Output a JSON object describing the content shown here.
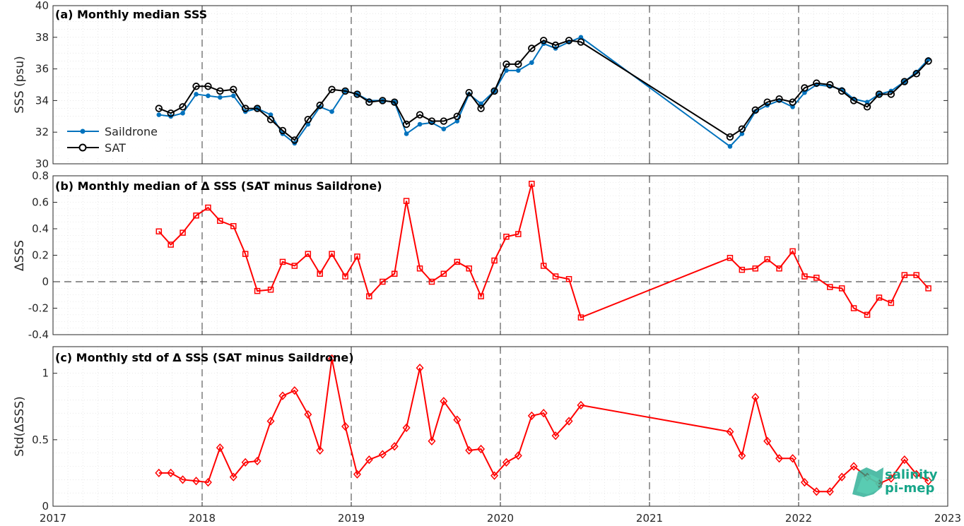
{
  "chart_data": [
    {
      "type": "line",
      "title": "(a) Monthly median SSS",
      "ylabel": "SSS (psu)",
      "ylim": [
        30,
        40
      ],
      "yticks": [
        30,
        32,
        34,
        36,
        38,
        40
      ],
      "xlim": [
        2017,
        2023
      ],
      "x": [
        2017.71,
        2017.79,
        2017.87,
        2017.96,
        2018.04,
        2018.12,
        2018.21,
        2018.29,
        2018.37,
        2018.46,
        2018.54,
        2018.62,
        2018.71,
        2018.79,
        2018.87,
        2018.96,
        2019.04,
        2019.12,
        2019.21,
        2019.29,
        2019.37,
        2019.46,
        2019.54,
        2019.62,
        2019.71,
        2019.79,
        2019.87,
        2019.96,
        2020.04,
        2020.12,
        2020.21,
        2020.29,
        2020.37,
        2020.46,
        2020.54,
        2021.54,
        2021.62,
        2021.71,
        2021.79,
        2021.87,
        2021.96,
        2022.04,
        2022.12,
        2022.21,
        2022.29,
        2022.37,
        2022.46,
        2022.54,
        2022.62,
        2022.71,
        2022.79,
        2022.87
      ],
      "series": [
        {
          "name": "Saildrone",
          "color": "#0072bd",
          "marker": "dot",
          "values": [
            33.1,
            33.0,
            33.2,
            34.4,
            34.3,
            34.2,
            34.3,
            33.3,
            33.5,
            33.1,
            31.9,
            31.3,
            32.5,
            33.6,
            33.3,
            34.6,
            34.4,
            34.0,
            34.0,
            33.9,
            31.9,
            32.5,
            32.6,
            32.2,
            32.7,
            34.4,
            33.8,
            34.6,
            35.9,
            35.9,
            36.4,
            37.6,
            37.3,
            37.7,
            38.0,
            31.1,
            31.9,
            33.3,
            33.7,
            34.0,
            33.6,
            34.5,
            35.0,
            34.9,
            34.7,
            34.1,
            33.9,
            34.4,
            34.6,
            35.2,
            35.8,
            36.6
          ]
        },
        {
          "name": "SAT",
          "color": "#000000",
          "marker": "circle",
          "values": [
            33.5,
            33.2,
            33.6,
            34.9,
            34.9,
            34.6,
            34.7,
            33.5,
            33.5,
            32.8,
            32.1,
            31.5,
            32.8,
            33.7,
            34.7,
            34.6,
            34.4,
            33.9,
            34.0,
            33.9,
            32.5,
            33.1,
            32.7,
            32.7,
            33.0,
            34.5,
            33.5,
            34.6,
            36.3,
            36.3,
            37.3,
            37.8,
            37.5,
            37.8,
            37.7,
            31.7,
            32.2,
            33.4,
            33.9,
            34.1,
            33.9,
            34.8,
            35.1,
            35.0,
            34.6,
            34.0,
            33.6,
            34.4,
            34.4,
            35.2,
            35.7,
            36.5
          ]
        }
      ],
      "legend": [
        "Saildrone",
        "SAT"
      ],
      "legend_location": "bottom-left",
      "grid": true
    },
    {
      "type": "line",
      "title": "(b) Monthly median of Δ SSS (SAT minus Saildrone)",
      "ylabel": "ΔSSS",
      "ylim": [
        -0.4,
        0.8
      ],
      "yticks": [
        -0.4,
        -0.2,
        0,
        0.2,
        0.4,
        0.6,
        0.8
      ],
      "xlim": [
        2017,
        2023
      ],
      "x": [
        2017.71,
        2017.79,
        2017.87,
        2017.96,
        2018.04,
        2018.12,
        2018.21,
        2018.29,
        2018.37,
        2018.46,
        2018.54,
        2018.62,
        2018.71,
        2018.79,
        2018.87,
        2018.96,
        2019.04,
        2019.12,
        2019.21,
        2019.29,
        2019.37,
        2019.46,
        2019.54,
        2019.62,
        2019.71,
        2019.79,
        2019.87,
        2019.96,
        2020.04,
        2020.12,
        2020.21,
        2020.29,
        2020.37,
        2020.46,
        2020.54,
        2021.54,
        2021.62,
        2021.71,
        2021.79,
        2021.87,
        2021.96,
        2022.04,
        2022.12,
        2022.21,
        2022.29,
        2022.37,
        2022.46,
        2022.54,
        2022.62,
        2022.71,
        2022.79,
        2022.87
      ],
      "series": [
        {
          "color": "#ff0000",
          "marker": "square",
          "values": [
            0.38,
            0.28,
            0.37,
            0.5,
            0.56,
            0.46,
            0.42,
            0.21,
            -0.07,
            -0.06,
            0.15,
            0.12,
            0.21,
            0.06,
            0.21,
            0.04,
            0.19,
            -0.11,
            0.0,
            0.06,
            0.61,
            0.1,
            0.0,
            0.06,
            0.15,
            0.1,
            -0.11,
            0.16,
            0.34,
            0.36,
            0.74,
            0.12,
            0.04,
            0.02,
            -0.27,
            0.18,
            0.09,
            0.1,
            0.17,
            0.1,
            0.23,
            0.04,
            0.03,
            -0.04,
            -0.05,
            -0.2,
            -0.25,
            -0.12,
            -0.16,
            0.05,
            0.05,
            -0.05
          ]
        }
      ],
      "zero_line": true,
      "grid": true
    },
    {
      "type": "line",
      "title": "(c) Monthly std of Δ SSS (SAT minus Saildrone)",
      "ylabel": "Std(ΔSSS)",
      "ylim": [
        0,
        1.2
      ],
      "yticks": [
        0,
        0.5,
        1
      ],
      "xlim": [
        2017,
        2023
      ],
      "xticks": [
        2017,
        2018,
        2019,
        2020,
        2021,
        2022,
        2023
      ],
      "x": [
        2017.71,
        2017.79,
        2017.87,
        2017.96,
        2018.04,
        2018.12,
        2018.21,
        2018.29,
        2018.37,
        2018.46,
        2018.54,
        2018.62,
        2018.71,
        2018.79,
        2018.87,
        2018.96,
        2019.04,
        2019.12,
        2019.21,
        2019.29,
        2019.37,
        2019.46,
        2019.54,
        2019.62,
        2019.71,
        2019.79,
        2019.87,
        2019.96,
        2020.04,
        2020.12,
        2020.21,
        2020.29,
        2020.37,
        2020.46,
        2020.54,
        2021.54,
        2021.62,
        2021.71,
        2021.79,
        2021.87,
        2021.96,
        2022.04,
        2022.12,
        2022.21,
        2022.29,
        2022.37,
        2022.46,
        2022.54,
        2022.62,
        2022.71,
        2022.79,
        2022.87
      ],
      "series": [
        {
          "color": "#ff0000",
          "marker": "diamond",
          "values": [
            0.25,
            0.25,
            0.2,
            0.19,
            0.18,
            0.44,
            0.22,
            0.33,
            0.34,
            0.64,
            0.83,
            0.87,
            0.69,
            0.42,
            1.11,
            0.6,
            0.24,
            0.35,
            0.39,
            0.45,
            0.59,
            1.04,
            0.49,
            0.79,
            0.65,
            0.42,
            0.43,
            0.23,
            0.33,
            0.38,
            0.68,
            0.7,
            0.53,
            0.64,
            0.76,
            0.56,
            0.38,
            0.82,
            0.49,
            0.36,
            0.36,
            0.18,
            0.11,
            0.11,
            0.22,
            0.3,
            0.22,
            0.17,
            0.21,
            0.35,
            0.24,
            0.19
          ]
        }
      ],
      "grid": true
    }
  ],
  "logo": {
    "line1": "salinity",
    "line2": "pi-mep"
  }
}
